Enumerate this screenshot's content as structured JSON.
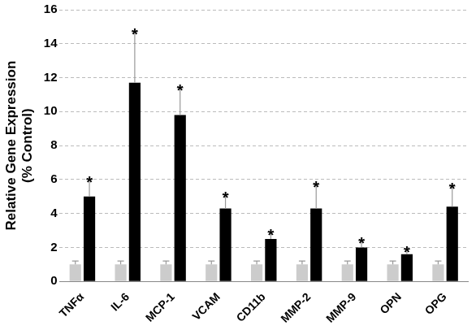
{
  "chart_data": {
    "type": "bar",
    "ylabel": "Relative Gene Expression",
    "ylabel_note": "(% Control)",
    "categories": [
      "TNFα",
      "IL-6",
      "MCP-1",
      "VCAM",
      "CD11b",
      "MMP-2",
      "MMP-9",
      "OPN",
      "OPG"
    ],
    "series": [
      {
        "color": "#cccccc",
        "values": [
          1.0,
          1.0,
          1.0,
          1.0,
          1.0,
          1.0,
          1.0,
          1.0,
          1.0
        ],
        "errors": [
          0.2,
          0.2,
          0.2,
          0.2,
          0.2,
          0.2,
          0.2,
          0.2,
          0.2
        ]
      },
      {
        "color": "#000000",
        "values": [
          5.0,
          11.7,
          9.8,
          4.3,
          2.5,
          4.3,
          2.0,
          1.6,
          4.4
        ],
        "errors": [
          1.0,
          3.0,
          1.6,
          0.8,
          0.4,
          1.4,
          0.4,
          0.3,
          1.2
        ],
        "annotations": [
          "*",
          "*",
          "*",
          "*",
          "*",
          "*",
          "*",
          "*",
          "*"
        ]
      }
    ],
    "ylim": [
      0,
      16
    ],
    "yticks": [
      0,
      2,
      4,
      6,
      8,
      10,
      12,
      14,
      16
    ],
    "grid": true
  }
}
